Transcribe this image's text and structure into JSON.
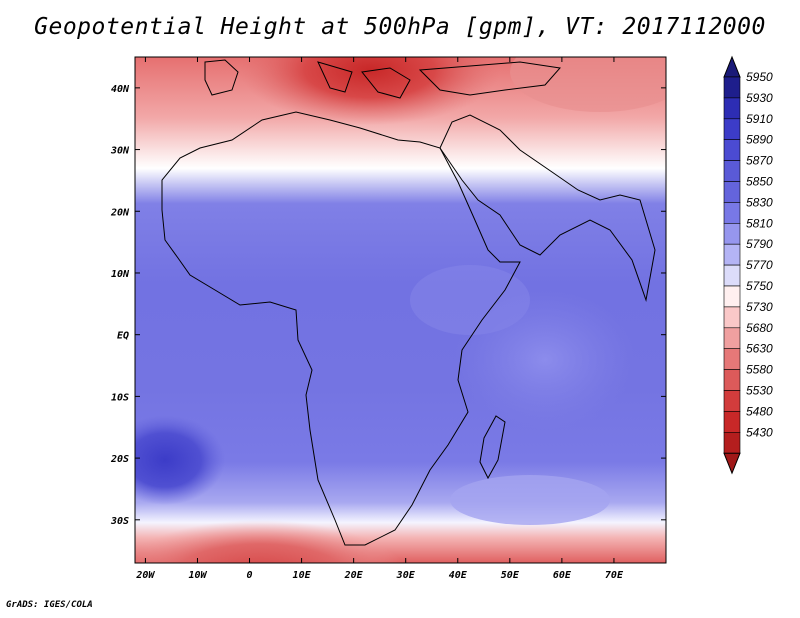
{
  "title": "Geopotential Height at 500hPa [gpm], VT: 2017112000",
  "credit": "GrADS: IGES/COLA",
  "map": {
    "lat_labels": [
      "40N",
      "30N",
      "20N",
      "10N",
      "EQ",
      "10S",
      "20S",
      "30S"
    ],
    "lon_labels": [
      "20W",
      "10W",
      "0",
      "10E",
      "20E",
      "30E",
      "40E",
      "50E",
      "60E",
      "70E"
    ],
    "lon_range": [
      -22,
      80
    ],
    "lat_range": [
      -37,
      45
    ]
  },
  "colorbar": {
    "levels": [
      "5950",
      "5930",
      "5910",
      "5890",
      "5870",
      "5850",
      "5830",
      "5810",
      "5790",
      "5770",
      "5750",
      "5730",
      "5680",
      "5630",
      "5580",
      "5530",
      "5480",
      "5430"
    ],
    "colors": [
      "#1e1e8c",
      "#2d2db4",
      "#3c3cc8",
      "#4b4bd2",
      "#5a5ad7",
      "#6464dc",
      "#7878e6",
      "#9696ee",
      "#b4b4f5",
      "#dcdcfa",
      "#fff0f0",
      "#fac8c8",
      "#f0a0a0",
      "#e67878",
      "#dc5a5a",
      "#d23c3c",
      "#c82828",
      "#b41e1e"
    ]
  }
}
